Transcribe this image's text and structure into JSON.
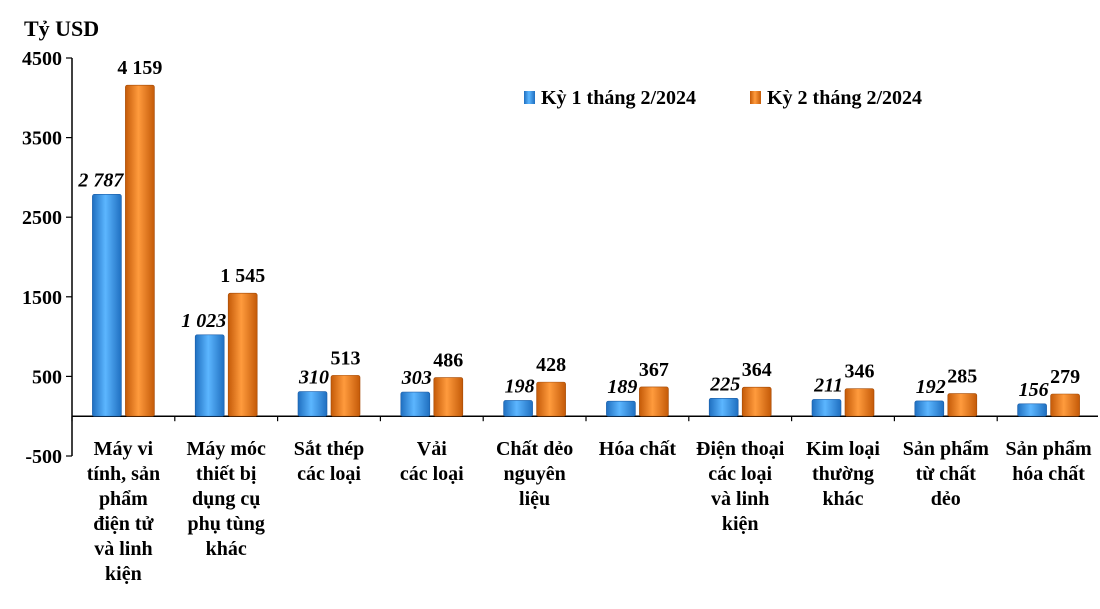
{
  "chart_data": {
    "type": "bar",
    "ylabel": "Tỷ USD",
    "ylim": [
      -500,
      4500
    ],
    "yticks": [
      "4500",
      "3500",
      "2500",
      "1500",
      "500",
      "-500"
    ],
    "ytick_values": [
      4500,
      3500,
      2500,
      1500,
      500,
      -500
    ],
    "grid": false,
    "legend_position": "top-right",
    "categories": [
      [
        "Máy vi",
        "tính, sản",
        "phẩm",
        "điện tử",
        "và linh",
        "kiện"
      ],
      [
        "Máy móc",
        "thiết bị",
        "dụng cụ",
        "phụ tùng",
        "khác"
      ],
      [
        "Sắt thép",
        "các loại"
      ],
      [
        "Vải",
        "các loại"
      ],
      [
        "Chất dẻo",
        "nguyên",
        "liệu"
      ],
      [
        "Hóa chất"
      ],
      [
        "Điện thoại",
        "các loại",
        "và linh",
        "kiện"
      ],
      [
        "Kim loại",
        "thường",
        "khác"
      ],
      [
        "Sản phẩm",
        "từ chất",
        "dẻo"
      ],
      [
        "Sản phẩm",
        "hóa chất"
      ]
    ],
    "series": [
      {
        "name": "Kỳ 1 tháng 2/2024",
        "color": "#2E8AE0",
        "values": [
          2787,
          1023,
          310,
          303,
          198,
          189,
          225,
          211,
          192,
          156
        ],
        "labels": [
          "2 787",
          "1 023",
          "310",
          "303",
          "198",
          "189",
          "225",
          "211",
          "192",
          "156"
        ]
      },
      {
        "name": "Kỳ 2 tháng 2/2024",
        "color": "#E8710F",
        "values": [
          4159,
          1545,
          513,
          486,
          428,
          367,
          364,
          346,
          285,
          279
        ],
        "labels": [
          "4 159",
          "1 545",
          "513",
          "486",
          "428",
          "367",
          "364",
          "346",
          "285",
          "279"
        ]
      }
    ]
  }
}
